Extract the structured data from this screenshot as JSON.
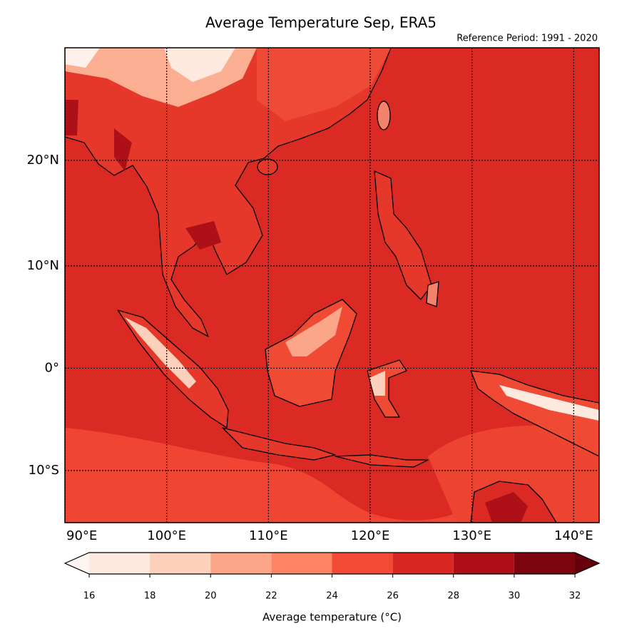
{
  "map": {
    "title": "Average Temperature Sep, ERA5",
    "subtitle": "Reference Period: 1991 - 2020",
    "lon_range": [
      90,
      142.5
    ],
    "lat_range": [
      -15,
      30
    ],
    "lon_ticks": [
      {
        "value": 90,
        "label": "90°E"
      },
      {
        "value": 100,
        "label": "100°E"
      },
      {
        "value": 110,
        "label": "110°E"
      },
      {
        "value": 120,
        "label": "120°E"
      },
      {
        "value": 130,
        "label": "130°E"
      },
      {
        "value": 140,
        "label": "140°E"
      }
    ],
    "lat_ticks": [
      {
        "value": 20,
        "label": "20°N"
      },
      {
        "value": 10,
        "label": "10°N"
      },
      {
        "value": 0,
        "label": "0°"
      },
      {
        "value": -10,
        "label": "10°S"
      }
    ],
    "colorbar": {
      "label": "Average temperature (°C)",
      "levels": [
        16,
        18,
        20,
        22,
        24,
        26,
        28,
        30,
        32
      ],
      "colors": [
        "#fee9df",
        "#fdd0bc",
        "#fca689",
        "#fc8464",
        "#f24a35",
        "#d92723",
        "#ad1117",
        "#7c0510"
      ],
      "under_color": "#fff5f0",
      "over_color": "#67000d"
    }
  }
}
